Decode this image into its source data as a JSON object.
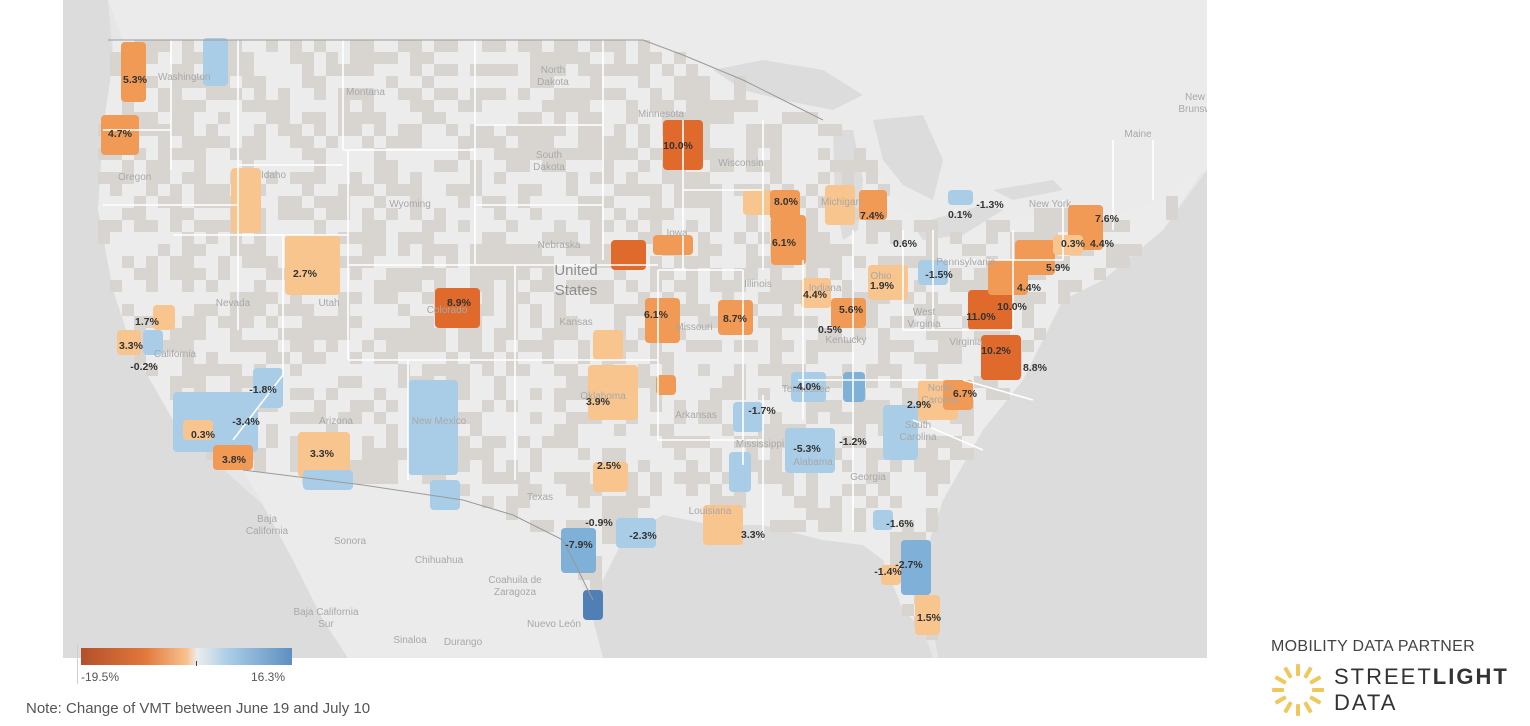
{
  "map": {
    "country_label": "United\nStates",
    "region_labels": [
      {
        "id": "washington",
        "text": "Washington"
      },
      {
        "id": "montana",
        "text": "Montana"
      },
      {
        "id": "north-dakota",
        "text": "North\nDakota"
      },
      {
        "id": "minnesota",
        "text": "Minnesota"
      },
      {
        "id": "oregon",
        "text": "Oregon"
      },
      {
        "id": "idaho",
        "text": "Idaho"
      },
      {
        "id": "south-dakota",
        "text": "South\nDakota"
      },
      {
        "id": "wisconsin",
        "text": "Wisconsin"
      },
      {
        "id": "wyoming",
        "text": "Wyoming"
      },
      {
        "id": "michigan",
        "text": "Michigan"
      },
      {
        "id": "new-york",
        "text": "New York"
      },
      {
        "id": "maine",
        "text": "Maine"
      },
      {
        "id": "new-brunswick",
        "text": "New\nBrunsw"
      },
      {
        "id": "nebraska",
        "text": "Nebraska"
      },
      {
        "id": "iowa",
        "text": "Iowa"
      },
      {
        "id": "nevada",
        "text": "Nevada"
      },
      {
        "id": "utah",
        "text": "Utah"
      },
      {
        "id": "colorado",
        "text": "Colorado"
      },
      {
        "id": "illinois",
        "text": "Illinois"
      },
      {
        "id": "indiana",
        "text": "Indiana"
      },
      {
        "id": "ohio",
        "text": "Ohio"
      },
      {
        "id": "pennsylvania",
        "text": "Pennsylvania"
      },
      {
        "id": "kansas",
        "text": "Kansas"
      },
      {
        "id": "missouri",
        "text": "Missouri"
      },
      {
        "id": "california",
        "text": "California"
      },
      {
        "id": "kentucky",
        "text": "Kentucky"
      },
      {
        "id": "west-virginia",
        "text": "West\nVirginia"
      },
      {
        "id": "virginia",
        "text": "Virginia"
      },
      {
        "id": "oklahoma",
        "text": "Oklahoma"
      },
      {
        "id": "tennessee",
        "text": "Tennessee"
      },
      {
        "id": "north-carolina",
        "text": "North\nCarolina"
      },
      {
        "id": "arizona",
        "text": "Arizona"
      },
      {
        "id": "new-mexico",
        "text": "New Mexico"
      },
      {
        "id": "arkansas",
        "text": "Arkansas"
      },
      {
        "id": "south-carolina",
        "text": "South\nCarolina"
      },
      {
        "id": "mississippi",
        "text": "Mississippi"
      },
      {
        "id": "alabama",
        "text": "Alabama"
      },
      {
        "id": "georgia",
        "text": "Georgia"
      },
      {
        "id": "texas",
        "text": "Texas"
      },
      {
        "id": "louisiana",
        "text": "Louisiana"
      },
      {
        "id": "baja-california",
        "text": "Baja\nCalifornia"
      },
      {
        "id": "sonora",
        "text": "Sonora"
      },
      {
        "id": "chihuahua",
        "text": "Chihuahua"
      },
      {
        "id": "coahuila",
        "text": "Coahuila de\nZaragoza"
      },
      {
        "id": "baja-california-sur",
        "text": "Baja California\nSur"
      },
      {
        "id": "sinaloa",
        "text": "Sinaloa"
      },
      {
        "id": "durango",
        "text": "Durango"
      },
      {
        "id": "nuevo-leon",
        "text": "Nuevo León"
      }
    ],
    "value_labels": [
      {
        "id": "seattle",
        "text": "5.3%",
        "value": 5.3
      },
      {
        "id": "portland",
        "text": "4.7%",
        "value": 4.7
      },
      {
        "id": "minneapolis",
        "text": "10.0%",
        "value": 10.0
      },
      {
        "id": "milwaukee",
        "text": "8.0%",
        "value": 8.0
      },
      {
        "id": "grand-rapids",
        "text": "7.4%",
        "value": 7.4
      },
      {
        "id": "buffalo",
        "text": "0.1%",
        "value": 0.1
      },
      {
        "id": "syracuse",
        "text": "-1.3%",
        "value": -1.3
      },
      {
        "id": "boston",
        "text": "7.6%",
        "value": 7.6
      },
      {
        "id": "hartford",
        "text": "0.3%",
        "value": 0.3
      },
      {
        "id": "providence",
        "text": "4.4%",
        "value": 4.4
      },
      {
        "id": "chicago",
        "text": "6.1%",
        "value": 6.1
      },
      {
        "id": "cleveland",
        "text": "0.6%",
        "value": 0.6
      },
      {
        "id": "salt-lake-city",
        "text": "2.7%",
        "value": 2.7
      },
      {
        "id": "denver",
        "text": "8.9%",
        "value": 8.9
      },
      {
        "id": "pittsburgh",
        "text": "-1.5%",
        "value": -1.5
      },
      {
        "id": "new-york-city",
        "text": "5.9%",
        "value": 5.9
      },
      {
        "id": "philadelphia",
        "text": "4.4%",
        "value": 4.4
      },
      {
        "id": "reno",
        "text": "1.7%",
        "value": 1.7
      },
      {
        "id": "kansas-city",
        "text": "6.1%",
        "value": 6.1
      },
      {
        "id": "st-louis",
        "text": "8.7%",
        "value": 8.7
      },
      {
        "id": "indianapolis",
        "text": "4.4%",
        "value": 4.4
      },
      {
        "id": "columbus",
        "text": "1.9%",
        "value": 1.9
      },
      {
        "id": "cincinnati",
        "text": "5.6%",
        "value": 5.6
      },
      {
        "id": "baltimore",
        "text": "10.0%",
        "value": 10.0
      },
      {
        "id": "washington-dc",
        "text": "11.0%",
        "value": 11.0
      },
      {
        "id": "san-francisco",
        "text": "3.3%",
        "value": 3.3
      },
      {
        "id": "louisville",
        "text": "0.5%",
        "value": 0.5
      },
      {
        "id": "san-jose",
        "text": "-0.2%",
        "value": -0.2
      },
      {
        "id": "richmond",
        "text": "10.2%",
        "value": 10.2
      },
      {
        "id": "norfolk",
        "text": "8.8%",
        "value": 8.8
      },
      {
        "id": "las-vegas",
        "text": "-1.8%",
        "value": -1.8
      },
      {
        "id": "nashville",
        "text": "-4.0%",
        "value": -4.0
      },
      {
        "id": "raleigh",
        "text": "6.7%",
        "value": 6.7
      },
      {
        "id": "oklahoma-city",
        "text": "3.9%",
        "value": 3.9
      },
      {
        "id": "charlotte",
        "text": "2.9%",
        "value": 2.9
      },
      {
        "id": "riverside",
        "text": "-3.4%",
        "value": -3.4
      },
      {
        "id": "memphis",
        "text": "-1.7%",
        "value": -1.7
      },
      {
        "id": "los-angeles",
        "text": "0.3%",
        "value": 0.3
      },
      {
        "id": "atlanta",
        "text": "-1.2%",
        "value": -1.2
      },
      {
        "id": "phoenix",
        "text": "3.3%",
        "value": 3.3
      },
      {
        "id": "birmingham",
        "text": "-5.3%",
        "value": -5.3
      },
      {
        "id": "san-diego",
        "text": "3.8%",
        "value": 3.8
      },
      {
        "id": "dallas",
        "text": "2.5%",
        "value": 2.5
      },
      {
        "id": "jacksonville",
        "text": "-1.6%",
        "value": -1.6
      },
      {
        "id": "austin",
        "text": "-0.9%",
        "value": -0.9
      },
      {
        "id": "houston",
        "text": "-2.3%",
        "value": -2.3
      },
      {
        "id": "new-orleans",
        "text": "3.3%",
        "value": 3.3
      },
      {
        "id": "san-antonio",
        "text": "-7.9%",
        "value": -7.9
      },
      {
        "id": "orlando",
        "text": "-2.7%",
        "value": -2.7
      },
      {
        "id": "tampa",
        "text": "-1.4%",
        "value": -1.4
      },
      {
        "id": "miami",
        "text": "1.5%",
        "value": 1.5
      }
    ]
  },
  "legend": {
    "min_label": "-19.5%",
    "max_label": "16.3%",
    "min": -19.5,
    "max": 16.3,
    "colors": {
      "neg": "#b3502a",
      "mid": "#f7c18d",
      "pos": "#5d8fc0"
    }
  },
  "note": "Note: Change of VMT between June 19 and July 10",
  "partner": {
    "heading": "MOBILITY DATA PARTNER",
    "brand_light": "STREET",
    "brand_bold": "LIGHT",
    "brand_line2": "DATA"
  },
  "colors": {
    "land_us": "#ececec",
    "land_other": "#e4e4e4",
    "water": "#e0e0e0",
    "county_gray": "#d8d5d0",
    "orange_strong": "#e06a2c",
    "orange_mid": "#f09a55",
    "orange_light": "#f8c58e",
    "blue_light": "#a9cde6",
    "blue_mid": "#7fb0d8",
    "blue_dark": "#4f7fb5"
  }
}
